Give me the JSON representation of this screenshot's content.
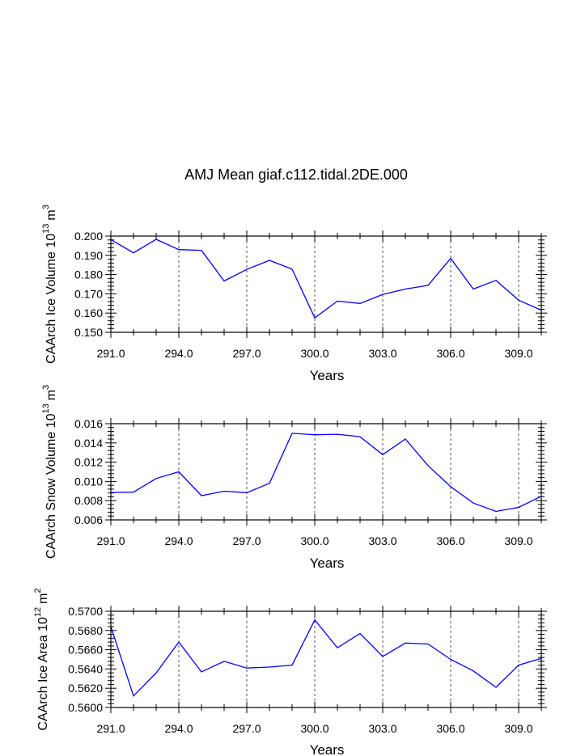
{
  "title": "AMJ Mean giaf.c112.tidal.2DE.000",
  "colors": {
    "line": "#0000ff",
    "axis": "#000000",
    "grid": "#555555"
  },
  "chart_data": [
    {
      "type": "line",
      "title": "AMJ Mean giaf.c112.tidal.2DE.000",
      "xlabel": "Years",
      "ylabel": "CAArch Ice Volume 10^13 m^3",
      "ylabel_main": "CAArch Ice Volume 10",
      "ylabel_exp": "13",
      "ylabel_unit": "m",
      "ylabel_unit_exp": "3",
      "xlim": [
        291,
        310
      ],
      "ylim": [
        0.15,
        0.2
      ],
      "yticks": [
        "0.150",
        "0.160",
        "0.170",
        "0.180",
        "0.190",
        "0.200"
      ],
      "xticks": [
        "291.0",
        "294.0",
        "297.0",
        "300.0",
        "303.0",
        "306.0",
        "309.0"
      ],
      "x": [
        291,
        292,
        293,
        294,
        295,
        296,
        297,
        298,
        299,
        300,
        301,
        302,
        303,
        304,
        305,
        306,
        307,
        308,
        309,
        310
      ],
      "values": [
        0.1982,
        0.1913,
        0.1983,
        0.193,
        0.1926,
        0.1767,
        0.1827,
        0.1874,
        0.1828,
        0.1575,
        0.1662,
        0.165,
        0.1697,
        0.1725,
        0.1744,
        0.1884,
        0.1725,
        0.177,
        0.1667,
        0.1615
      ]
    },
    {
      "type": "line",
      "title": "",
      "xlabel": "Years",
      "ylabel": "CAArch Snow Volume 10^13 m^3",
      "ylabel_main": "CAArch Snow Volume 10",
      "ylabel_exp": "13",
      "ylabel_unit": "m",
      "ylabel_unit_exp": "3",
      "xlim": [
        291,
        310
      ],
      "ylim": [
        0.006,
        0.016
      ],
      "yticks": [
        "0.006",
        "0.008",
        "0.010",
        "0.012",
        "0.014",
        "0.016"
      ],
      "xticks": [
        "291.0",
        "294.0",
        "297.0",
        "300.0",
        "303.0",
        "306.0",
        "309.0"
      ],
      "x": [
        291,
        292,
        293,
        294,
        295,
        296,
        297,
        298,
        299,
        300,
        301,
        302,
        303,
        304,
        305,
        306,
        307,
        308,
        309,
        310
      ],
      "values": [
        0.00885,
        0.00888,
        0.0103,
        0.011,
        0.00852,
        0.00898,
        0.00883,
        0.0098,
        0.015,
        0.01485,
        0.0149,
        0.01465,
        0.01278,
        0.0144,
        0.01165,
        0.00945,
        0.00775,
        0.00688,
        0.0073,
        0.00845
      ]
    },
    {
      "type": "line",
      "title": "",
      "xlabel": "Years",
      "ylabel": "CAArch Ice Area 10^12 m^2",
      "ylabel_main": "CAArch Ice Area 10",
      "ylabel_exp": "12",
      "ylabel_unit": "m",
      "ylabel_unit_exp": "2",
      "xlim": [
        291,
        310
      ],
      "ylim": [
        0.56,
        0.57
      ],
      "yticks": [
        "0.5600",
        "0.5620",
        "0.5640",
        "0.5660",
        "0.5680",
        "0.5700"
      ],
      "xticks": [
        "291.0",
        "294.0",
        "297.0",
        "300.0",
        "303.0",
        "306.0",
        "309.0"
      ],
      "x": [
        291,
        292,
        293,
        294,
        295,
        296,
        297,
        298,
        299,
        300,
        301,
        302,
        303,
        304,
        305,
        306,
        307,
        308,
        309,
        310
      ],
      "values": [
        0.5684,
        0.5612,
        0.5636,
        0.5668,
        0.5637,
        0.5648,
        0.5641,
        0.5642,
        0.5644,
        0.5691,
        0.5662,
        0.5677,
        0.5653,
        0.5667,
        0.5666,
        0.565,
        0.5638,
        0.5621,
        0.5644,
        0.5651
      ]
    }
  ]
}
